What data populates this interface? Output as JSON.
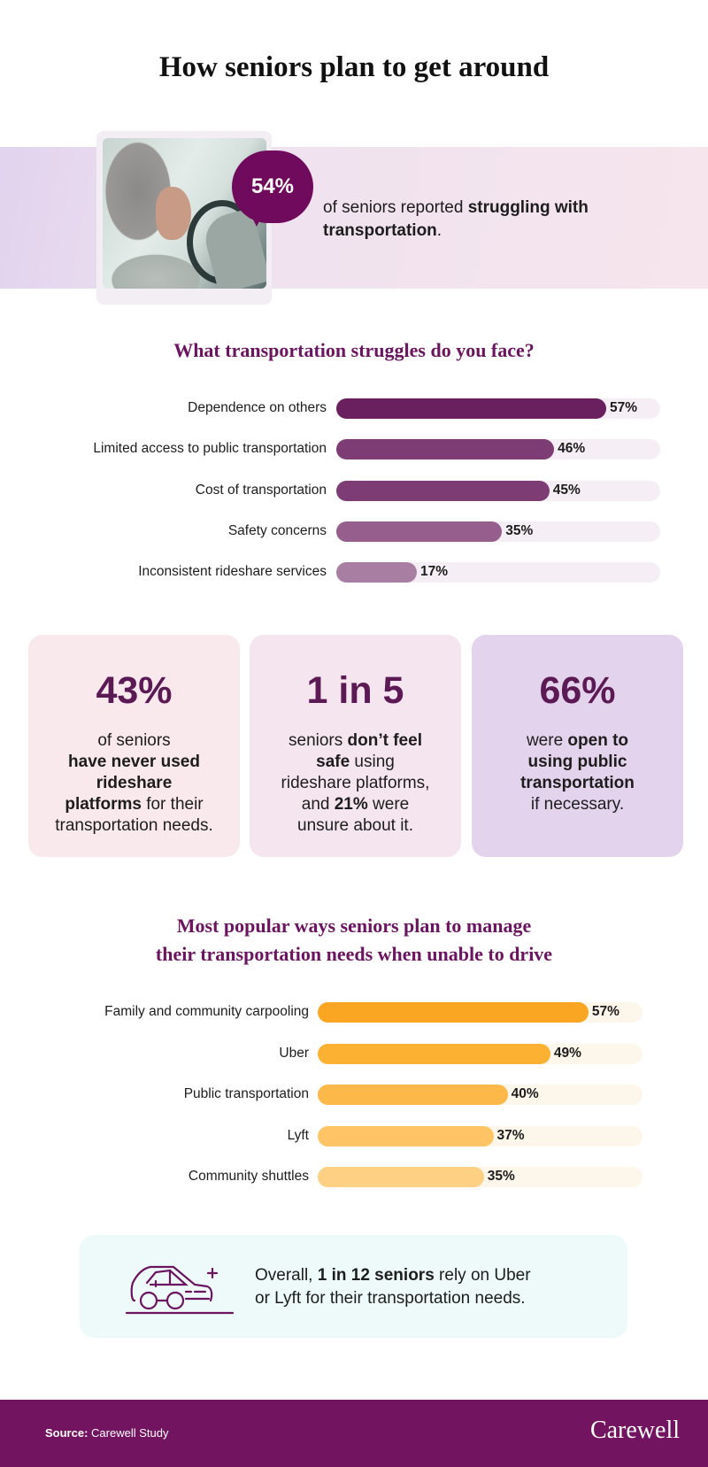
{
  "title": "How seniors plan to get around",
  "intro": {
    "stat": "54%",
    "text_pre": "of seniors reported ",
    "text_bold": "struggling with transportation",
    "text_post": "."
  },
  "chart_data": [
    {
      "type": "bar",
      "orientation": "horizontal",
      "title": "What transportation struggles do you face?",
      "categories": [
        "Dependence on others",
        "Limited access to public transportation",
        "Cost of transportation",
        "Safety concerns",
        "Inconsistent rideshare services"
      ],
      "values": [
        57,
        46,
        45,
        35,
        17
      ],
      "labels": [
        "57%",
        "46%",
        "45%",
        "35%",
        "17%"
      ],
      "colors": [
        "#6a1f5f",
        "#7d3d74",
        "#7d3d74",
        "#955e8c",
        "#a97ea3"
      ],
      "track_color": "#f5eef4"
    },
    {
      "type": "bar",
      "orientation": "horizontal",
      "title": "Most popular ways seniors plan to manage their transportation needs when unable to drive",
      "title_lines": [
        "Most popular ways seniors plan to manage",
        "their transportation needs when unable to drive"
      ],
      "categories": [
        "Family and community carpooling",
        "Uber",
        "Public transportation",
        "Lyft",
        "Community shuttles"
      ],
      "values": [
        57,
        49,
        40,
        37,
        35
      ],
      "labels": [
        "57%",
        "49%",
        "40%",
        "37%",
        "35%"
      ],
      "colors": [
        "#fba622",
        "#fdb133",
        "#fdb84a",
        "#fec466",
        "#fed083"
      ],
      "track_color": "#fdf6ea"
    }
  ],
  "cards": [
    {
      "stat": "43%",
      "bg": "#f9e8ec",
      "lines": [
        [
          {
            "t": "of seniors",
            "b": false
          }
        ],
        [
          {
            "t": "have never used",
            "b": true
          }
        ],
        [
          {
            "t": "rideshare",
            "b": true
          }
        ],
        [
          {
            "t": "platforms",
            "b": true
          },
          {
            "t": " for their",
            "b": false
          }
        ],
        [
          {
            "t": "transportation needs.",
            "b": false
          }
        ]
      ]
    },
    {
      "stat": "1 in 5",
      "bg": "#f5e5ef",
      "lines": [
        [
          {
            "t": "seniors ",
            "b": false
          },
          {
            "t": "don’t feel",
            "b": true
          }
        ],
        [
          {
            "t": "safe",
            "b": true
          },
          {
            "t": " using",
            "b": false
          }
        ],
        [
          {
            "t": "rideshare platforms,",
            "b": false
          }
        ],
        [
          {
            "t": "and ",
            "b": false
          },
          {
            "t": "21%",
            "b": true
          },
          {
            "t": " were",
            "b": false
          }
        ],
        [
          {
            "t": "unsure about it.",
            "b": false
          }
        ]
      ]
    },
    {
      "stat": "66%",
      "bg": "#e3d3ec",
      "lines": [
        [
          {
            "t": "were ",
            "b": false
          },
          {
            "t": "open to",
            "b": true
          }
        ],
        [
          {
            "t": "using public",
            "b": true
          }
        ],
        [
          {
            "t": "transportation",
            "b": true
          }
        ],
        [
          {
            "t": "if necessary.",
            "b": false
          }
        ]
      ]
    }
  ],
  "note": {
    "icon": "car-icon",
    "pre": "Overall, ",
    "bold": "1 in 12 seniors",
    "post1": " rely on Uber",
    "line2": "or Lyft for their transportation needs."
  },
  "footer": {
    "source_label": "Source:",
    "source_value": " Carewell Study",
    "logo": "Carewell"
  },
  "colors": {
    "brand_purple": "#72145f",
    "heading": "#6b1460",
    "note_bg": "#eefafa"
  }
}
